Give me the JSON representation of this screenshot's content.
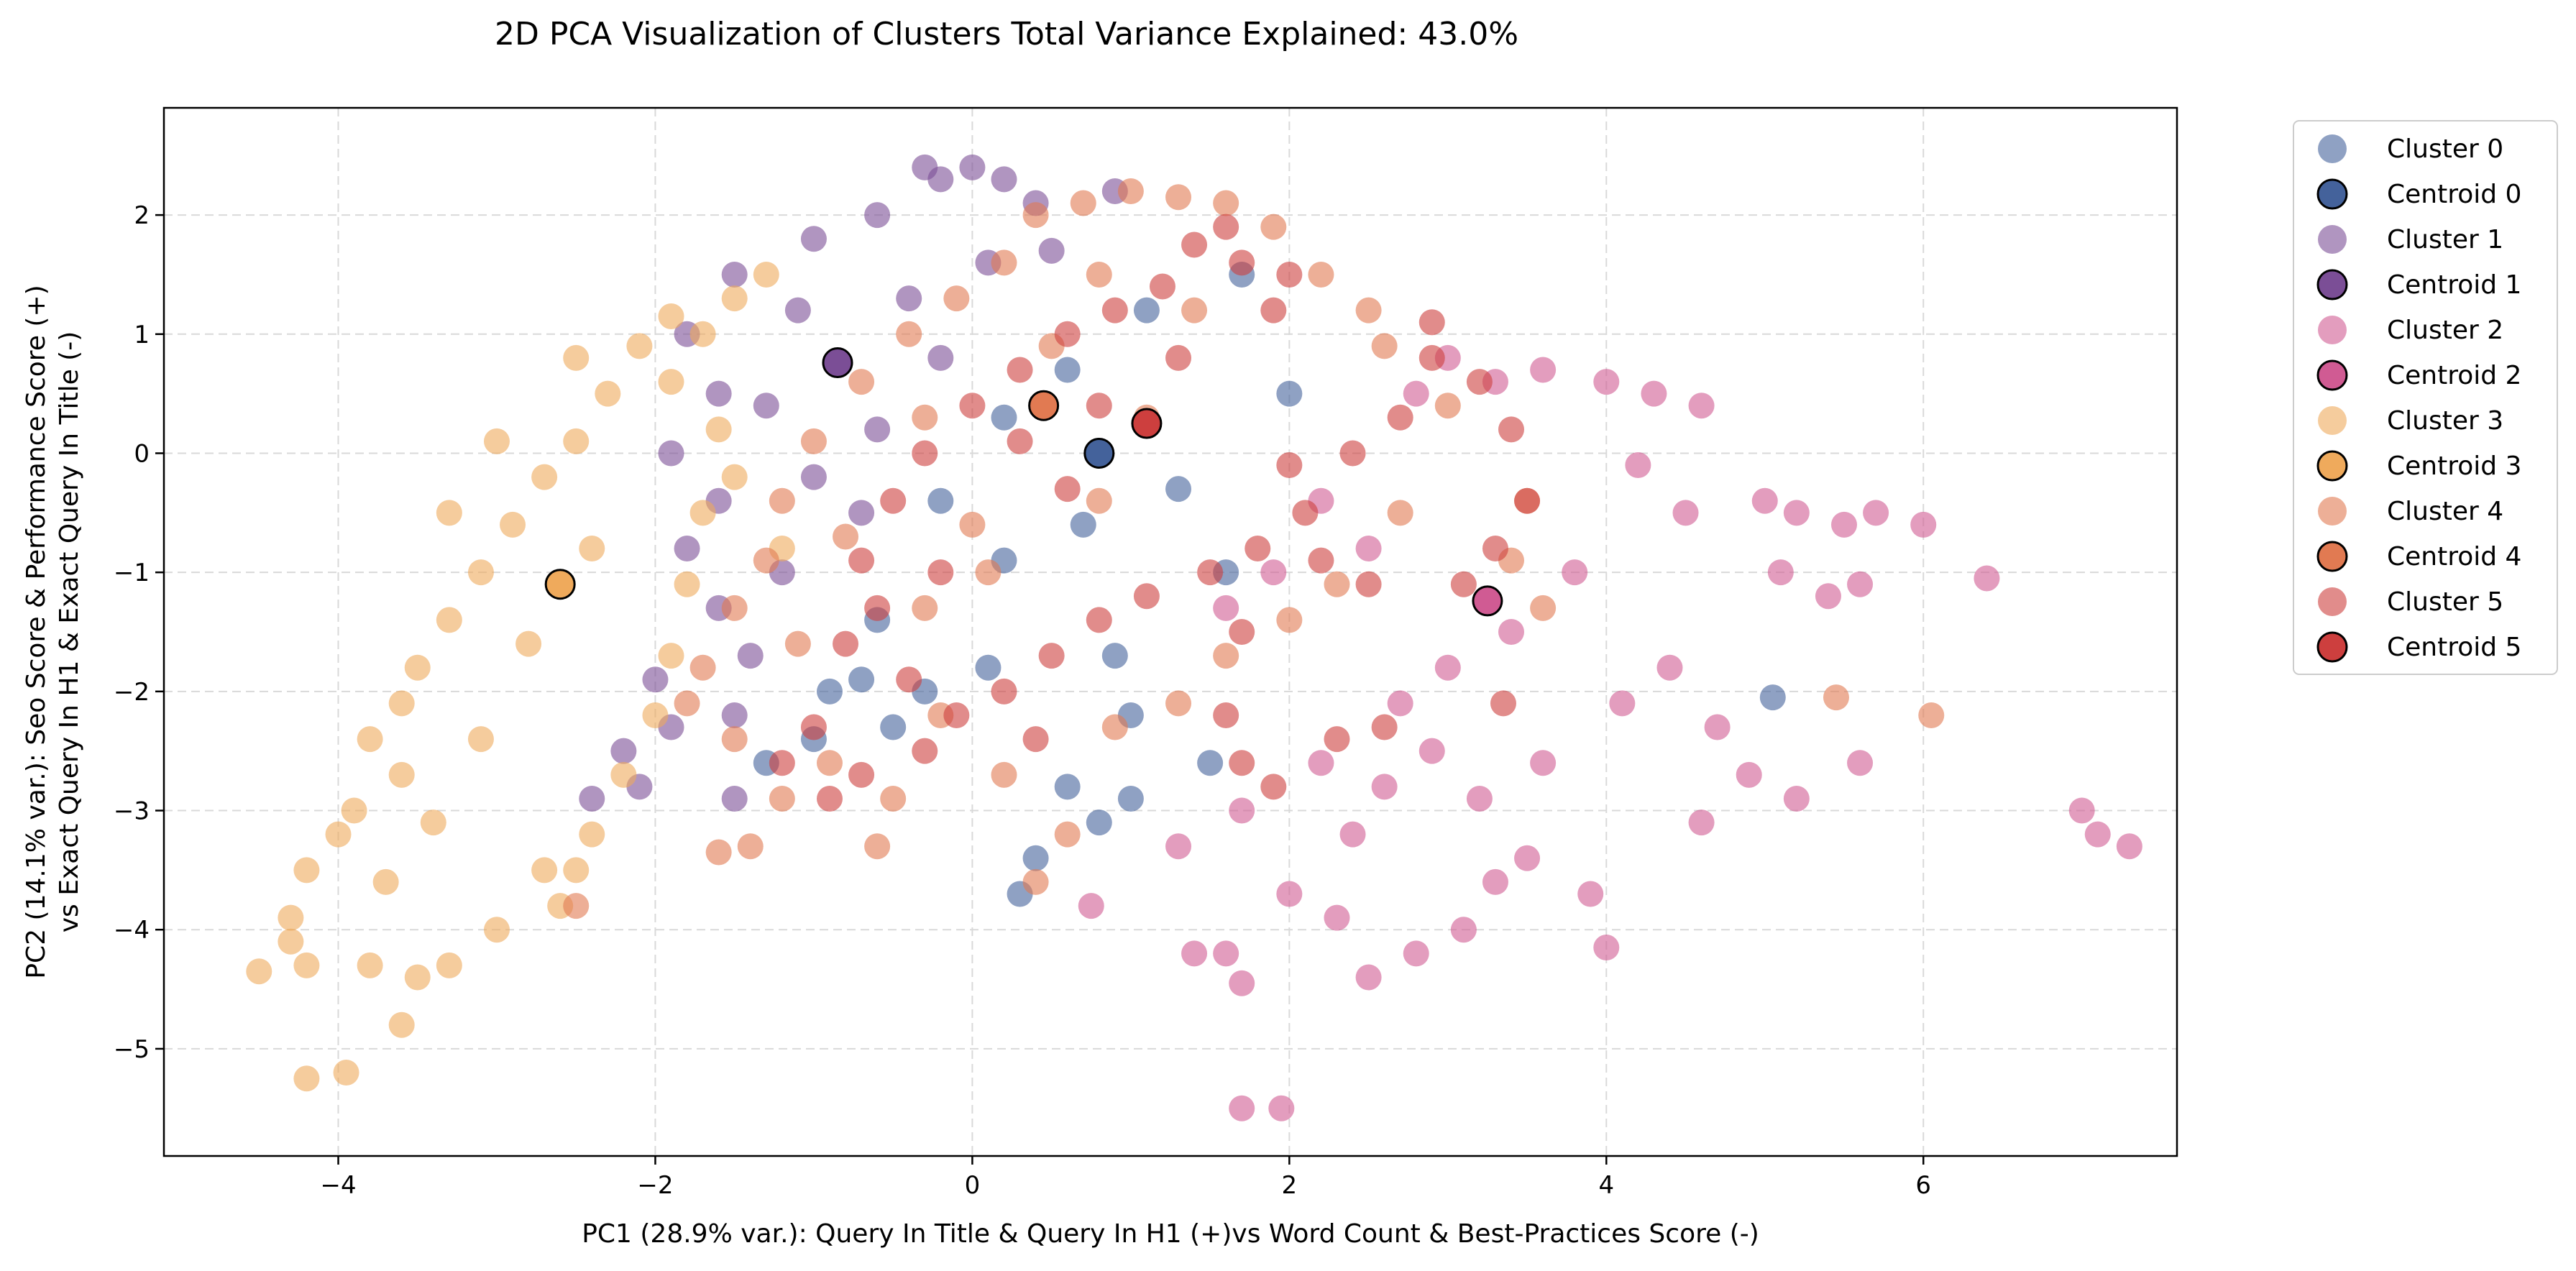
{
  "chart_data": {
    "type": "scatter",
    "title": "2D PCA Visualization of Clusters Total Variance Explained: 43.0%",
    "xlabel": "PC1 (28.9% var.): Query In Title & Query In H1 (+)vs Word Count & Best-Practices Score (-)",
    "ylabel_lines": [
      "PC2 (14.1% var.): Seo Score & Performance Score (+)",
      "vs Exact Query In H1 & Exact Query In Title (-)"
    ],
    "xlim": [
      -5.1,
      7.6
    ],
    "ylim": [
      -5.9,
      2.9
    ],
    "x_ticks": [
      -4,
      -2,
      0,
      2,
      4,
      6
    ],
    "x_tick_labels": [
      "−4",
      "−2",
      "0",
      "2",
      "4",
      "6"
    ],
    "y_ticks": [
      2,
      1,
      0,
      -1,
      -2,
      -3,
      -4,
      -5
    ],
    "y_tick_labels": [
      "2",
      "1",
      "0",
      "−1",
      "−2",
      "−3",
      "−4",
      "−5"
    ],
    "grid": true,
    "legend_position": "outside upper right",
    "series": [
      {
        "name": "Cluster 0",
        "color": "#44629b",
        "centroid_name": "Centroid 0",
        "centroid": [
          0.8,
          0.0
        ],
        "points": [
          [
            1.1,
            1.2
          ],
          [
            0.6,
            0.7
          ],
          [
            0.2,
            0.3
          ],
          [
            -0.2,
            -0.4
          ],
          [
            -0.6,
            -1.4
          ],
          [
            -0.9,
            -2.0
          ],
          [
            -0.5,
            -2.3
          ],
          [
            0.1,
            -1.8
          ],
          [
            0.9,
            -1.7
          ],
          [
            1.0,
            -2.2
          ],
          [
            0.6,
            -2.8
          ],
          [
            0.8,
            -3.1
          ],
          [
            0.4,
            -3.4
          ],
          [
            0.3,
            -3.7
          ],
          [
            1.0,
            -2.9
          ],
          [
            1.5,
            -2.6
          ],
          [
            1.6,
            -1.0
          ],
          [
            1.3,
            -0.3
          ],
          [
            2.0,
            0.5
          ],
          [
            1.7,
            1.5
          ],
          [
            -1.0,
            -2.4
          ],
          [
            -1.3,
            -2.6
          ],
          [
            5.05,
            -2.05
          ],
          [
            -0.3,
            -2.0
          ],
          [
            0.2,
            -0.9
          ],
          [
            0.7,
            -0.6
          ],
          [
            -0.7,
            -1.9
          ]
        ]
      },
      {
        "name": "Cluster 1",
        "color": "#7b4e96",
        "centroid_name": "Centroid 1",
        "centroid": [
          -0.85,
          0.76
        ],
        "points": [
          [
            -0.3,
            2.4
          ],
          [
            -0.2,
            2.3
          ],
          [
            0.0,
            2.4
          ],
          [
            0.2,
            2.3
          ],
          [
            0.4,
            2.1
          ],
          [
            -0.6,
            2.0
          ],
          [
            -1.0,
            1.8
          ],
          [
            -1.5,
            1.5
          ],
          [
            -1.8,
            1.0
          ],
          [
            -1.6,
            0.5
          ],
          [
            -1.9,
            0.0
          ],
          [
            -1.8,
            -0.8
          ],
          [
            -1.6,
            -1.3
          ],
          [
            -2.0,
            -1.9
          ],
          [
            -2.2,
            -2.5
          ],
          [
            -2.4,
            -2.9
          ],
          [
            -1.0,
            -0.2
          ],
          [
            -0.6,
            0.2
          ],
          [
            -0.2,
            0.8
          ],
          [
            -1.1,
            1.2
          ],
          [
            -1.3,
            0.4
          ],
          [
            -1.6,
            -0.4
          ],
          [
            -1.4,
            -1.7
          ],
          [
            -1.9,
            -2.3
          ],
          [
            0.5,
            1.7
          ],
          [
            0.1,
            1.6
          ],
          [
            -0.4,
            1.3
          ],
          [
            -1.2,
            -1.0
          ],
          [
            -1.5,
            -2.2
          ],
          [
            0.9,
            2.2
          ],
          [
            -0.7,
            -0.5
          ],
          [
            -2.1,
            -2.8
          ],
          [
            -1.5,
            -2.9
          ]
        ]
      },
      {
        "name": "Cluster 2",
        "color": "#d05b93",
        "centroid_name": "Centroid 2",
        "centroid": [
          3.25,
          -1.24
        ],
        "points": [
          [
            2.8,
            0.5
          ],
          [
            3.0,
            0.8
          ],
          [
            3.3,
            0.6
          ],
          [
            3.6,
            0.7
          ],
          [
            4.0,
            0.6
          ],
          [
            4.3,
            0.5
          ],
          [
            4.6,
            0.4
          ],
          [
            4.2,
            -0.1
          ],
          [
            4.5,
            -0.5
          ],
          [
            5.0,
            -0.4
          ],
          [
            5.2,
            -0.5
          ],
          [
            5.5,
            -0.6
          ],
          [
            5.7,
            -0.5
          ],
          [
            6.0,
            -0.6
          ],
          [
            5.1,
            -1.0
          ],
          [
            5.4,
            -1.2
          ],
          [
            5.6,
            -1.1
          ],
          [
            6.4,
            -1.05
          ],
          [
            3.8,
            -1.0
          ],
          [
            3.4,
            -1.5
          ],
          [
            3.0,
            -1.8
          ],
          [
            2.7,
            -2.1
          ],
          [
            2.9,
            -2.5
          ],
          [
            2.6,
            -2.8
          ],
          [
            3.2,
            -2.9
          ],
          [
            3.6,
            -2.6
          ],
          [
            4.1,
            -2.1
          ],
          [
            4.4,
            -1.8
          ],
          [
            4.7,
            -2.3
          ],
          [
            4.9,
            -2.7
          ],
          [
            5.2,
            -2.9
          ],
          [
            5.6,
            -2.6
          ],
          [
            4.6,
            -3.1
          ],
          [
            3.9,
            -3.7
          ],
          [
            4.0,
            -4.15
          ],
          [
            3.3,
            -3.6
          ],
          [
            3.1,
            -4.0
          ],
          [
            2.8,
            -4.2
          ],
          [
            2.5,
            -4.4
          ],
          [
            2.3,
            -3.9
          ],
          [
            2.0,
            -3.7
          ],
          [
            1.6,
            -4.2
          ],
          [
            1.4,
            -4.2
          ],
          [
            1.3,
            -3.3
          ],
          [
            1.7,
            -4.45
          ],
          [
            1.7,
            -5.5
          ],
          [
            1.95,
            -5.5
          ],
          [
            1.6,
            -1.3
          ],
          [
            1.9,
            -1.0
          ],
          [
            2.2,
            -0.4
          ],
          [
            2.5,
            -0.8
          ],
          [
            7.0,
            -3.0
          ],
          [
            7.1,
            -3.2
          ],
          [
            7.3,
            -3.3
          ],
          [
            2.4,
            -3.2
          ],
          [
            3.5,
            -3.4
          ],
          [
            2.2,
            -2.6
          ],
          [
            1.7,
            -3.0
          ],
          [
            0.75,
            -3.8
          ]
        ]
      },
      {
        "name": "Cluster 3",
        "color": "#efaa5c",
        "centroid_name": "Centroid 3",
        "centroid": [
          -2.6,
          -1.1
        ],
        "points": [
          [
            -1.3,
            1.5
          ],
          [
            -1.5,
            1.3
          ],
          [
            -1.7,
            1.0
          ],
          [
            -1.9,
            1.15
          ],
          [
            -2.1,
            0.9
          ],
          [
            -2.3,
            0.5
          ],
          [
            -2.5,
            0.1
          ],
          [
            -2.7,
            -0.2
          ],
          [
            -2.9,
            -0.6
          ],
          [
            -3.1,
            -1.0
          ],
          [
            -3.3,
            -1.4
          ],
          [
            -3.5,
            -1.8
          ],
          [
            -3.6,
            -2.1
          ],
          [
            -3.8,
            -2.4
          ],
          [
            -3.6,
            -2.7
          ],
          [
            -3.9,
            -3.0
          ],
          [
            -4.0,
            -3.2
          ],
          [
            -4.2,
            -3.5
          ],
          [
            -4.3,
            -3.9
          ],
          [
            -4.3,
            -4.1
          ],
          [
            -4.5,
            -4.35
          ],
          [
            -4.2,
            -4.3
          ],
          [
            -3.8,
            -4.3
          ],
          [
            -3.5,
            -4.4
          ],
          [
            -3.6,
            -4.8
          ],
          [
            -4.2,
            -5.25
          ],
          [
            -3.95,
            -5.2
          ],
          [
            -3.3,
            -4.3
          ],
          [
            -3.0,
            -4.0
          ],
          [
            -2.7,
            -3.5
          ],
          [
            -2.4,
            -3.2
          ],
          [
            -2.2,
            -2.7
          ],
          [
            -2.0,
            -2.2
          ],
          [
            -1.9,
            -1.7
          ],
          [
            -1.8,
            -1.1
          ],
          [
            -1.7,
            -0.5
          ],
          [
            -1.6,
            0.2
          ],
          [
            -1.9,
            0.6
          ],
          [
            -2.4,
            -0.8
          ],
          [
            -2.8,
            -1.6
          ],
          [
            -3.1,
            -2.4
          ],
          [
            -3.4,
            -3.1
          ],
          [
            -3.7,
            -3.6
          ],
          [
            -2.6,
            -3.8
          ],
          [
            -2.5,
            -3.5
          ],
          [
            -1.5,
            -0.2
          ],
          [
            -1.2,
            -0.8
          ],
          [
            -3.3,
            -0.5
          ],
          [
            -3.0,
            0.1
          ],
          [
            -2.5,
            0.8
          ]
        ]
      },
      {
        "name": "Cluster 4",
        "color": "#e17a52",
        "centroid_name": "Centroid 4",
        "centroid": [
          0.45,
          0.4
        ],
        "points": [
          [
            0.4,
            2.0
          ],
          [
            0.7,
            2.1
          ],
          [
            1.0,
            2.2
          ],
          [
            1.3,
            2.15
          ],
          [
            1.6,
            2.1
          ],
          [
            1.9,
            1.9
          ],
          [
            2.2,
            1.5
          ],
          [
            2.5,
            1.2
          ],
          [
            0.2,
            1.6
          ],
          [
            -0.1,
            1.3
          ],
          [
            -0.4,
            1.0
          ],
          [
            -0.7,
            0.6
          ],
          [
            -1.0,
            0.1
          ],
          [
            -1.2,
            -0.4
          ],
          [
            -1.3,
            -0.9
          ],
          [
            -1.5,
            -1.3
          ],
          [
            -1.7,
            -1.8
          ],
          [
            -1.8,
            -2.1
          ],
          [
            -1.5,
            -2.4
          ],
          [
            -1.2,
            -2.9
          ],
          [
            -1.4,
            -3.3
          ],
          [
            -1.6,
            -3.35
          ],
          [
            -0.9,
            -2.6
          ],
          [
            -0.5,
            -2.9
          ],
          [
            -0.6,
            -3.3
          ],
          [
            -0.2,
            -2.2
          ],
          [
            0.2,
            -2.7
          ],
          [
            0.4,
            -3.6
          ],
          [
            0.6,
            -3.2
          ],
          [
            0.9,
            -2.3
          ],
          [
            1.3,
            -2.1
          ],
          [
            1.6,
            -1.7
          ],
          [
            2.0,
            -1.4
          ],
          [
            2.3,
            -1.1
          ],
          [
            2.7,
            -0.5
          ],
          [
            3.0,
            0.4
          ],
          [
            2.6,
            0.9
          ],
          [
            0.8,
            1.5
          ],
          [
            1.4,
            1.2
          ],
          [
            0.5,
            0.9
          ],
          [
            -0.3,
            0.3
          ],
          [
            -0.8,
            -0.7
          ],
          [
            -1.1,
            -1.6
          ],
          [
            0.1,
            -1.0
          ],
          [
            0.8,
            -0.4
          ],
          [
            3.4,
            -0.9
          ],
          [
            3.6,
            -1.3
          ],
          [
            3.5,
            -0.4
          ],
          [
            5.45,
            -2.05
          ],
          [
            6.05,
            -2.2
          ],
          [
            -2.5,
            -3.8
          ],
          [
            -0.3,
            -1.3
          ],
          [
            0.0,
            -0.6
          ],
          [
            1.1,
            0.3
          ]
        ]
      },
      {
        "name": "Cluster 5",
        "color": "#cd3f3e",
        "centroid_name": "Centroid 5",
        "centroid": [
          1.1,
          0.25
        ],
        "points": [
          [
            1.6,
            1.9
          ],
          [
            1.4,
            1.75
          ],
          [
            1.7,
            1.6
          ],
          [
            2.0,
            1.5
          ],
          [
            1.2,
            1.4
          ],
          [
            0.9,
            1.2
          ],
          [
            0.6,
            1.0
          ],
          [
            0.3,
            0.7
          ],
          [
            0.0,
            0.4
          ],
          [
            -0.3,
            0.0
          ],
          [
            -0.5,
            -0.4
          ],
          [
            -0.7,
            -0.9
          ],
          [
            -0.6,
            -1.3
          ],
          [
            -0.8,
            -1.6
          ],
          [
            -0.4,
            -1.9
          ],
          [
            -0.1,
            -2.2
          ],
          [
            0.2,
            -2.0
          ],
          [
            0.5,
            -1.7
          ],
          [
            0.8,
            -1.4
          ],
          [
            1.1,
            -1.2
          ],
          [
            1.5,
            -1.0
          ],
          [
            1.8,
            -0.8
          ],
          [
            2.1,
            -0.5
          ],
          [
            2.4,
            0.0
          ],
          [
            2.7,
            0.3
          ],
          [
            2.9,
            0.8
          ],
          [
            2.9,
            1.1
          ],
          [
            3.2,
            0.6
          ],
          [
            3.4,
            0.2
          ],
          [
            3.5,
            -0.4
          ],
          [
            3.3,
            -0.8
          ],
          [
            3.1,
            -1.1
          ],
          [
            2.5,
            -1.1
          ],
          [
            2.2,
            -0.9
          ],
          [
            1.7,
            -1.5
          ],
          [
            1.6,
            -2.2
          ],
          [
            1.7,
            -2.6
          ],
          [
            1.9,
            -2.8
          ],
          [
            2.3,
            -2.4
          ],
          [
            2.6,
            -2.3
          ],
          [
            3.35,
            -2.1
          ],
          [
            -1.0,
            -2.3
          ],
          [
            -1.2,
            -2.6
          ],
          [
            -0.7,
            -2.7
          ],
          [
            -0.3,
            -2.5
          ],
          [
            0.4,
            -2.4
          ],
          [
            -0.9,
            -2.9
          ],
          [
            0.3,
            0.1
          ],
          [
            0.8,
            0.4
          ],
          [
            1.3,
            0.8
          ],
          [
            1.9,
            1.2
          ],
          [
            0.6,
            -0.3
          ],
          [
            -0.2,
            -1.0
          ],
          [
            2.0,
            -0.1
          ]
        ]
      }
    ]
  }
}
